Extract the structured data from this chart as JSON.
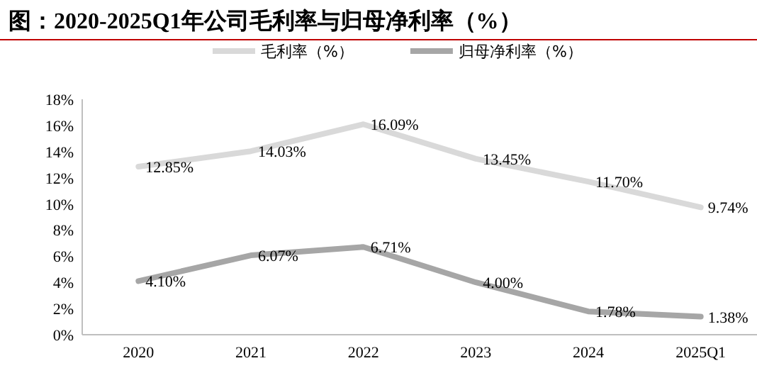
{
  "chart_data": {
    "type": "line",
    "title": "图：2020-2025Q1年公司毛利率与归母净利率（%）",
    "categories": [
      "2020",
      "2021",
      "2022",
      "2023",
      "2024",
      "2025Q1"
    ],
    "series": [
      {
        "name": "毛利率（%）",
        "color": "#d9d9d9",
        "values": [
          12.85,
          14.03,
          16.09,
          13.45,
          11.7,
          9.74
        ],
        "value_labels": [
          "12.85%",
          "14.03%",
          "16.09%",
          "13.45%",
          "11.70%",
          "9.74%"
        ]
      },
      {
        "name": "归母净利率（%）",
        "color": "#a6a6a6",
        "values": [
          4.1,
          6.07,
          6.71,
          4.0,
          1.78,
          1.38
        ],
        "value_labels": [
          "4.10%",
          "6.07%",
          "6.71%",
          "4.00%",
          "1.78%",
          "1.38%"
        ]
      }
    ],
    "ylim": [
      0,
      18
    ],
    "yticks": [
      {
        "value": 0,
        "label": "0%"
      },
      {
        "value": 2,
        "label": "2%"
      },
      {
        "value": 4,
        "label": "4%"
      },
      {
        "value": 6,
        "label": "6%"
      },
      {
        "value": 8,
        "label": "8%"
      },
      {
        "value": 10,
        "label": "10%"
      },
      {
        "value": 12,
        "label": "12%"
      },
      {
        "value": 14,
        "label": "14%"
      },
      {
        "value": 16,
        "label": "16%"
      },
      {
        "value": 18,
        "label": "18%"
      }
    ],
    "legend": "top"
  }
}
